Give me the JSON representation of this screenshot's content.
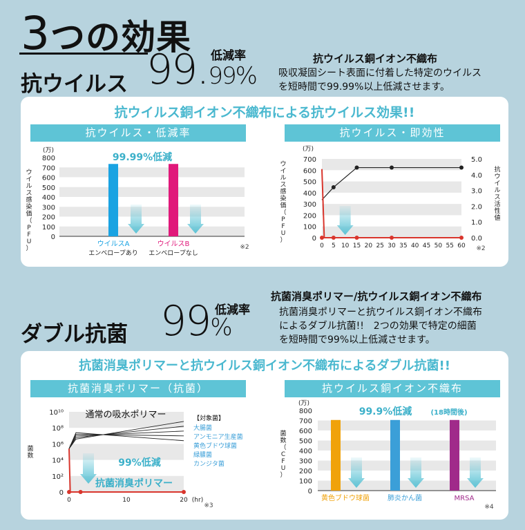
{
  "hero": {
    "title_num": "3",
    "title_rest": "つの効果",
    "antivirus_label": "抗ウイルス",
    "antivirus_pct_main": "99.",
    "antivirus_pct_sub": "99%",
    "antivirus_rate_label": "低減率",
    "desc_heading": "抗ウイルス銅イオン不織布",
    "desc_line1": "吸収凝固シート表面に付着した特定のウイルス",
    "desc_line2": "を短時間で99.99%以上低減させます。"
  },
  "panel1": {
    "title": "抗ウイルス銅イオン不織布による抗ウイルス効果!!",
    "chart1_header": "抗ウイルス・低減率",
    "chart2_header": "抗ウイルス・即効性"
  },
  "double": {
    "label": "ダブル抗菌",
    "pct_main": "99",
    "pct_sub": "%",
    "rate_label": "低減率",
    "desc_heading": "抗菌消臭ポリマー/抗ウイルス銅イオン不織布",
    "desc_line1": "抗菌消臭ポリマーと抗ウイルス銅イオン不織布",
    "desc_line2": "によるダブル抗菌!!　2つの効果で特定の細菌",
    "desc_line3": "を短時間で99%以上低減させます。"
  },
  "panel2": {
    "title": "抗菌消臭ポリマーと抗ウイルス銅イオン不織布によるダブル抗菌!!",
    "chart3_header": "抗菌消臭ポリマー（抗菌）",
    "chart4_header": "抗ウイルス銅イオン不織布"
  },
  "colors": {
    "cyan": "#5ec4d6",
    "blue": "#1aa3e2",
    "magenta": "#e0197a",
    "orange": "#f0a20a",
    "sky": "#3b9fd8",
    "purple": "#a02a8a",
    "red": "#d9352c"
  },
  "chart_data": [
    {
      "type": "bar",
      "title": "抗ウイルス・低減率",
      "ylabel": "ウイルス感染価（PFU）",
      "unit": "(万)",
      "ylim": [
        0,
        800
      ],
      "yticks": [
        0,
        100,
        200,
        300,
        400,
        500,
        600,
        700,
        800
      ],
      "categories": [
        "ウイルスA",
        "ウイルスB"
      ],
      "category_notes": [
        "エンベロープあり",
        "エンベロープなし"
      ],
      "values": [
        735,
        735
      ],
      "annotation": "99.99%低減",
      "footnote": "※2"
    },
    {
      "type": "line",
      "title": "抗ウイルス・即効性",
      "ylabel": "ウイルス感染価（PFU）",
      "y2label": "抗ウイルス活性値",
      "unit": "(万)",
      "ylim": [
        0,
        700
      ],
      "yticks": [
        0,
        100,
        200,
        300,
        400,
        500,
        600,
        700
      ],
      "y2lim": [
        0,
        5
      ],
      "y2ticks": [
        "0.0",
        "1.0",
        "2.0",
        "3.0",
        "4.0",
        "5.0"
      ],
      "xticks": [
        0,
        5,
        10,
        15,
        20,
        25,
        30,
        35,
        40,
        45,
        50,
        55,
        60
      ],
      "series": [
        {
          "name": "ウイルス感染価",
          "axis": "left",
          "x": [
            0,
            1,
            5,
            15,
            30,
            60
          ],
          "y": [
            610,
            0,
            0,
            0,
            0,
            0
          ]
        },
        {
          "name": "抗ウイルス活性値",
          "axis": "right",
          "x": [
            0,
            5,
            15,
            30,
            60
          ],
          "y": [
            2.4,
            3.2,
            4.45,
            4.45,
            4.45
          ]
        }
      ],
      "footnote": "※2"
    },
    {
      "type": "line",
      "title": "抗菌消臭ポリマー（抗菌）",
      "ylabel": "菌数",
      "yticks": [
        "0",
        "10²",
        "10⁴",
        "10⁶",
        "10⁸",
        "10¹⁰"
      ],
      "xticks": [
        "0",
        "10",
        "20"
      ],
      "xunit": "(hr)",
      "upper_label": "通常の吸水ポリマー",
      "lower_label": "抗菌消臭ポリマー",
      "annotation": "99%低減",
      "legend_title": "【対象菌】",
      "legend": [
        "大腸菌",
        "アンモニア生産菌",
        "黄色ブドウ球菌",
        "緑膿菌",
        "カンジタ菌"
      ],
      "series": [
        {
          "name": "抗菌消臭ポリマー",
          "x": [
            0,
            0.2,
            2,
            20
          ],
          "y": [
            5.4,
            0,
            0,
            0
          ]
        }
      ],
      "footnote": "※3"
    },
    {
      "type": "bar",
      "title": "抗ウイルス銅イオン不織布",
      "ylabel": "菌数（CFU）",
      "unit": "(万)",
      "ylim": [
        0,
        800
      ],
      "yticks": [
        0,
        100,
        200,
        300,
        400,
        500,
        600,
        700,
        800
      ],
      "categories": [
        "黄色ブドウ球菌",
        "肺炎かん菌",
        "MRSA"
      ],
      "values": [
        705,
        705,
        705
      ],
      "annotation": "99.9%低減",
      "annotation_sub": "(18時間後)",
      "footnote": "※4"
    }
  ]
}
